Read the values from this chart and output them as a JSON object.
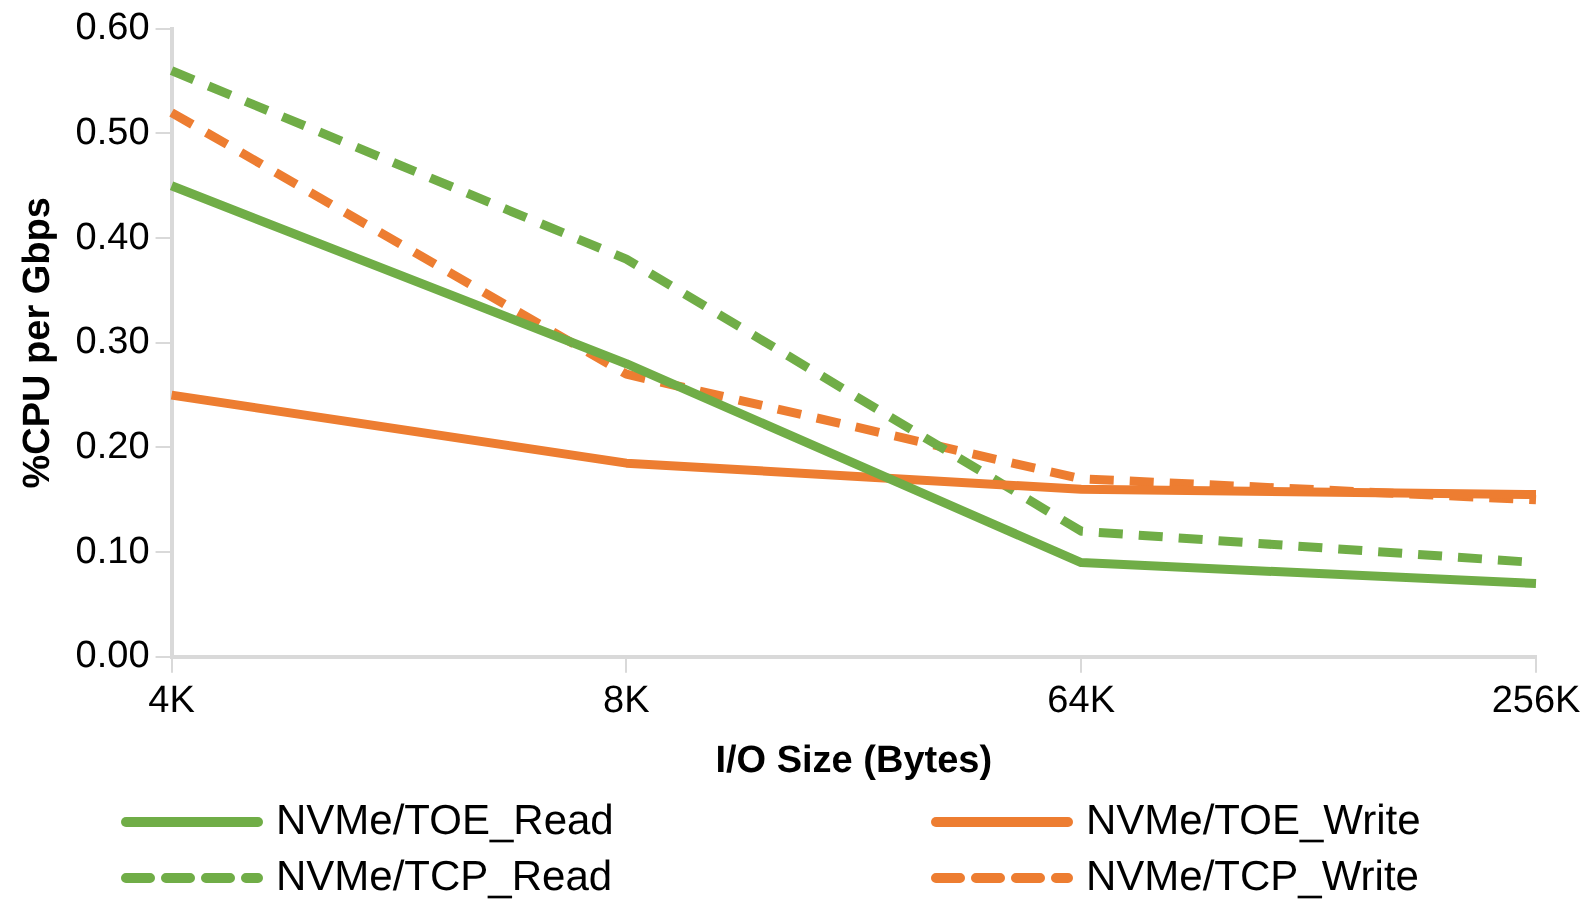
{
  "chart_data": {
    "type": "line",
    "xlabel": "I/O Size (Bytes)",
    "ylabel": "%CPU per Gbps",
    "categories": [
      "4K",
      "8K",
      "64K",
      "256K"
    ],
    "series": [
      {
        "name": "NVMe/TOE_Read",
        "color": "#70ad47",
        "line_style": "solid",
        "values": [
          0.45,
          0.28,
          0.09,
          0.07
        ]
      },
      {
        "name": "NVMe/TOE_Write",
        "color": "#ed7d31",
        "line_style": "solid",
        "values": [
          0.25,
          0.185,
          0.16,
          0.155
        ]
      },
      {
        "name": "NVMe/TCP_Read",
        "color": "#70ad47",
        "line_style": "dashed",
        "values": [
          0.56,
          0.38,
          0.12,
          0.09
        ]
      },
      {
        "name": "NVMe/TCP_Write",
        "color": "#ed7d31",
        "line_style": "dashed",
        "values": [
          0.52,
          0.27,
          0.17,
          0.15
        ]
      }
    ],
    "ylim": [
      0,
      0.6
    ],
    "yticks": [
      {
        "value": 0,
        "label": "0.00"
      },
      {
        "value": 0.1,
        "label": "0.10"
      },
      {
        "value": 0.2,
        "label": "0.20"
      },
      {
        "value": 0.3,
        "label": "0.30"
      },
      {
        "value": 0.4,
        "label": "0.40"
      },
      {
        "value": 0.5,
        "label": "0.50"
      },
      {
        "value": 0.6,
        "label": "0.60"
      }
    ],
    "grid": false,
    "legend": "bottom",
    "marker": "none"
  }
}
